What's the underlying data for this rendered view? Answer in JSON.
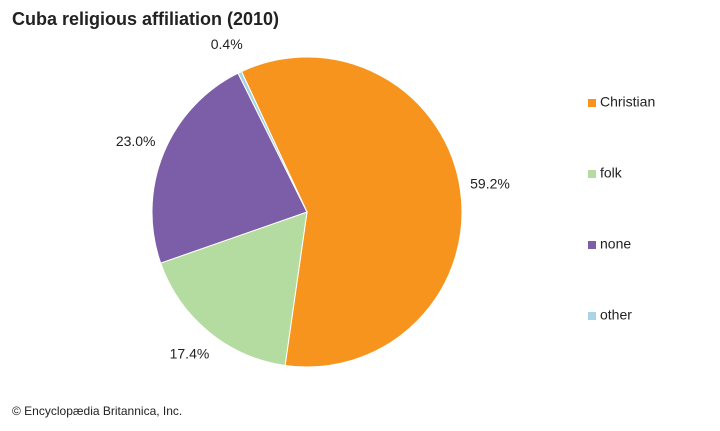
{
  "chart_data": {
    "type": "pie",
    "title": "Cuba religious affiliation (2010)",
    "categories": [
      "Christian",
      "folk",
      "none",
      "other"
    ],
    "values": [
      59.2,
      17.4,
      23.0,
      0.4
    ],
    "value_labels": [
      "59.2%",
      "17.4%",
      "23.0%",
      "0.4%"
    ],
    "colors": [
      "#f7941d",
      "#b5dca0",
      "#7b5ea7",
      "#a8d4e6"
    ],
    "legend": "right",
    "credit": "© Encyclopædia Britannica, Inc."
  }
}
